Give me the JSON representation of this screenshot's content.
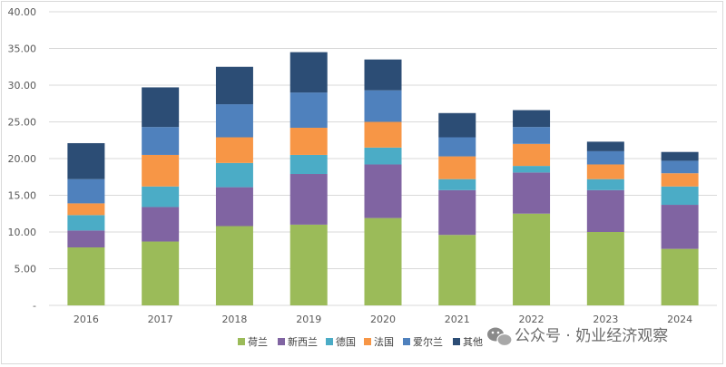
{
  "chart_data": {
    "type": "bar",
    "stacked": true,
    "categories": [
      "2016",
      "2017",
      "2018",
      "2019",
      "2020",
      "2021",
      "2022",
      "2023",
      "2024"
    ],
    "series": [
      {
        "name": "荷兰",
        "color": "#9bbb59",
        "values": [
          7.9,
          8.7,
          10.8,
          11.0,
          11.9,
          9.6,
          12.5,
          10.0,
          7.7
        ]
      },
      {
        "name": "新西兰",
        "color": "#8064a2",
        "values": [
          2.3,
          4.7,
          5.3,
          6.9,
          7.3,
          6.1,
          5.6,
          5.7,
          6.0
        ]
      },
      {
        "name": "德国",
        "color": "#4bacc6",
        "values": [
          2.1,
          2.8,
          3.3,
          2.6,
          2.3,
          1.5,
          0.9,
          1.5,
          2.5
        ]
      },
      {
        "name": "法国",
        "color": "#f79646",
        "values": [
          1.6,
          4.3,
          3.5,
          3.7,
          3.5,
          3.1,
          3.0,
          2.0,
          1.8
        ]
      },
      {
        "name": "爱尔兰",
        "color": "#4f81bd",
        "values": [
          3.3,
          3.8,
          4.5,
          4.8,
          4.3,
          2.6,
          2.3,
          1.8,
          1.7
        ]
      },
      {
        "name": "其他",
        "color": "#2c4d75",
        "values": [
          4.9,
          5.4,
          5.1,
          5.5,
          4.2,
          3.3,
          2.3,
          1.3,
          1.2
        ]
      }
    ],
    "ylim": [
      0,
      40
    ],
    "yticks": [
      "-",
      "5.00",
      "10.00",
      "15.00",
      "20.00",
      "25.00",
      "30.00",
      "35.00",
      "40.00"
    ],
    "grid": true,
    "legend_position": "bottom",
    "title": "",
    "xlabel": "",
    "ylabel": ""
  },
  "watermark": {
    "icon": "wechat-icon",
    "text": "公众号 · 奶业经济观察"
  }
}
